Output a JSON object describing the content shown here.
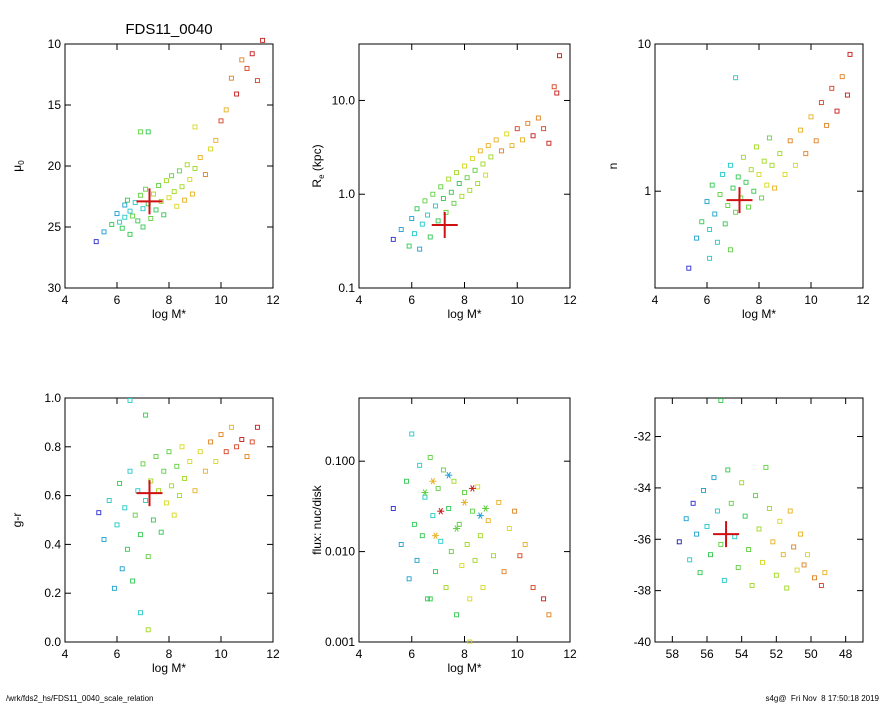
{
  "title": "FDS11_0040",
  "footer": {
    "left": "/wrk/fds2_hs/FDS11_0040_scale_relation",
    "right": "s4g@  Fri Nov  8 17:50:18 2019"
  },
  "colors": {
    "axes": "#000000",
    "marker_highlight": "#d01010",
    "palette": [
      "#1a1aa6",
      "#2a2ad0",
      "#1aa0d0",
      "#20c8c8",
      "#30c850",
      "#60d040",
      "#a0d820",
      "#d8d820",
      "#e8b020",
      "#e08020",
      "#d84020",
      "#c81818"
    ]
  },
  "chart_data": [
    {
      "type": "scatter",
      "xlabel": "log M*",
      "ylabel": "μ0",
      "xlim": [
        4,
        12
      ],
      "ylim": [
        30,
        10
      ],
      "xticks": [
        "4",
        "6",
        "8",
        "10",
        "12"
      ],
      "yticks": [
        "10",
        "15",
        "20",
        "25",
        "30"
      ],
      "y_reversed": true,
      "highlight": {
        "x": 7.25,
        "y": 22.9
      },
      "points": [
        [
          5.2,
          26.2
        ],
        [
          5.5,
          25.4
        ],
        [
          5.8,
          24.8
        ],
        [
          6.0,
          23.9
        ],
        [
          6.1,
          24.6
        ],
        [
          6.2,
          25.1
        ],
        [
          6.3,
          23.2
        ],
        [
          6.3,
          24.2
        ],
        [
          6.4,
          22.8
        ],
        [
          6.5,
          23.7
        ],
        [
          6.5,
          25.6
        ],
        [
          6.6,
          24.1
        ],
        [
          6.7,
          23.0
        ],
        [
          6.8,
          24.5
        ],
        [
          6.9,
          22.4
        ],
        [
          7.0,
          23.5
        ],
        [
          7.0,
          25.0
        ],
        [
          7.1,
          21.9
        ],
        [
          7.2,
          23.1
        ],
        [
          7.3,
          24.3
        ],
        [
          7.4,
          22.3
        ],
        [
          7.5,
          23.6
        ],
        [
          7.6,
          21.6
        ],
        [
          7.7,
          22.9
        ],
        [
          7.8,
          24.0
        ],
        [
          7.9,
          21.2
        ],
        [
          8.0,
          22.6
        ],
        [
          8.1,
          20.8
        ],
        [
          8.2,
          22.1
        ],
        [
          8.3,
          23.3
        ],
        [
          8.4,
          20.4
        ],
        [
          8.5,
          21.7
        ],
        [
          8.6,
          22.8
        ],
        [
          8.7,
          19.9
        ],
        [
          8.8,
          21.1
        ],
        [
          8.9,
          22.3
        ],
        [
          9.0,
          20.2
        ],
        [
          9.2,
          19.3
        ],
        [
          9.4,
          20.7
        ],
        [
          9.6,
          18.6
        ],
        [
          9.8,
          17.9
        ],
        [
          10.0,
          16.3
        ],
        [
          10.2,
          15.4
        ],
        [
          10.4,
          12.8
        ],
        [
          10.6,
          14.1
        ],
        [
          10.8,
          11.3
        ],
        [
          11.0,
          12.0
        ],
        [
          11.2,
          10.8
        ],
        [
          11.4,
          13.0
        ],
        [
          11.6,
          9.7
        ],
        [
          6.9,
          17.2
        ],
        [
          7.2,
          17.2
        ],
        [
          9.0,
          16.8
        ]
      ]
    },
    {
      "type": "scatter",
      "xlabel": "log M*",
      "ylabel": "Re (kpc)",
      "ylabel_main": "R",
      "ylabel_sub": "e",
      "ylabel_rest": " (kpc)",
      "xlim": [
        4,
        12
      ],
      "ylim": [
        0.1,
        40
      ],
      "y_log": true,
      "xticks": [
        "4",
        "6",
        "8",
        "10",
        "12"
      ],
      "yticks": [
        "0.1",
        "1.0",
        "10.0"
      ],
      "highlight": {
        "x": 7.25,
        "y": 0.47
      },
      "points": [
        [
          5.3,
          0.33
        ],
        [
          5.6,
          0.42
        ],
        [
          5.9,
          0.28
        ],
        [
          6.0,
          0.55
        ],
        [
          6.1,
          0.38
        ],
        [
          6.2,
          0.7
        ],
        [
          6.3,
          0.26
        ],
        [
          6.4,
          0.48
        ],
        [
          6.5,
          0.85
        ],
        [
          6.6,
          0.6
        ],
        [
          6.7,
          0.35
        ],
        [
          6.8,
          1.0
        ],
        [
          6.9,
          0.75
        ],
        [
          7.0,
          0.52
        ],
        [
          7.1,
          1.2
        ],
        [
          7.2,
          0.9
        ],
        [
          7.3,
          0.64
        ],
        [
          7.4,
          1.45
        ],
        [
          7.5,
          1.05
        ],
        [
          7.6,
          0.8
        ],
        [
          7.7,
          1.7
        ],
        [
          7.8,
          1.3
        ],
        [
          7.9,
          0.95
        ],
        [
          8.0,
          2.0
        ],
        [
          8.1,
          1.5
        ],
        [
          8.2,
          1.1
        ],
        [
          8.3,
          2.4
        ],
        [
          8.4,
          1.8
        ],
        [
          8.5,
          1.3
        ],
        [
          8.6,
          2.9
        ],
        [
          8.7,
          2.1
        ],
        [
          8.8,
          1.6
        ],
        [
          8.9,
          3.3
        ],
        [
          9.0,
          2.5
        ],
        [
          9.2,
          3.8
        ],
        [
          9.4,
          2.9
        ],
        [
          9.6,
          4.4
        ],
        [
          9.8,
          3.3
        ],
        [
          10.0,
          5.0
        ],
        [
          10.2,
          3.8
        ],
        [
          10.4,
          5.7
        ],
        [
          10.6,
          4.2
        ],
        [
          10.8,
          6.5
        ],
        [
          11.0,
          5.0
        ],
        [
          11.2,
          3.5
        ],
        [
          11.4,
          14.0
        ],
        [
          11.6,
          30.0
        ],
        [
          11.5,
          12.0
        ]
      ]
    },
    {
      "type": "scatter",
      "xlabel": "log M*",
      "ylabel": "n",
      "xlim": [
        4,
        12
      ],
      "ylim": [
        0.22,
        10
      ],
      "y_log": true,
      "xticks": [
        "4",
        "6",
        "8",
        "10",
        "12"
      ],
      "yticks": [
        "1",
        "10"
      ],
      "highlight": {
        "x": 7.25,
        "y": 0.87
      },
      "points": [
        [
          5.3,
          0.3
        ],
        [
          5.6,
          0.48
        ],
        [
          5.8,
          0.62
        ],
        [
          6.0,
          0.85
        ],
        [
          6.1,
          0.55
        ],
        [
          6.2,
          1.1
        ],
        [
          6.3,
          0.7
        ],
        [
          6.4,
          0.45
        ],
        [
          6.5,
          0.95
        ],
        [
          6.6,
          1.3
        ],
        [
          6.7,
          0.6
        ],
        [
          6.8,
          0.8
        ],
        [
          6.9,
          1.5
        ],
        [
          7.0,
          1.05
        ],
        [
          7.1,
          0.72
        ],
        [
          7.2,
          1.25
        ],
        [
          7.3,
          0.9
        ],
        [
          7.4,
          1.7
        ],
        [
          7.5,
          1.15
        ],
        [
          7.6,
          0.78
        ],
        [
          7.7,
          1.4
        ],
        [
          7.8,
          1.0
        ],
        [
          7.9,
          2.0
        ],
        [
          8.0,
          1.3
        ],
        [
          8.1,
          0.9
        ],
        [
          8.2,
          1.6
        ],
        [
          8.3,
          1.1
        ],
        [
          8.4,
          2.3
        ],
        [
          8.5,
          1.5
        ],
        [
          8.6,
          1.05
        ],
        [
          8.8,
          1.8
        ],
        [
          9.0,
          1.3
        ],
        [
          9.2,
          2.2
        ],
        [
          9.4,
          1.5
        ],
        [
          9.6,
          2.6
        ],
        [
          9.8,
          1.8
        ],
        [
          10.0,
          3.2
        ],
        [
          10.2,
          2.2
        ],
        [
          10.4,
          4.0
        ],
        [
          10.6,
          2.8
        ],
        [
          10.8,
          5.0
        ],
        [
          11.0,
          3.5
        ],
        [
          11.2,
          6.0
        ],
        [
          11.4,
          4.5
        ],
        [
          11.5,
          8.5
        ],
        [
          7.1,
          5.9
        ],
        [
          6.1,
          0.35
        ],
        [
          6.9,
          0.4
        ]
      ]
    },
    {
      "type": "scatter",
      "xlabel": "log M*",
      "ylabel": "g-r",
      "xlim": [
        4,
        12
      ],
      "ylim": [
        0.0,
        1.0
      ],
      "xticks": [
        "4",
        "6",
        "8",
        "10",
        "12"
      ],
      "yticks": [
        "0.0",
        "0.2",
        "0.4",
        "0.6",
        "0.8",
        "1.0"
      ],
      "highlight": {
        "x": 7.25,
        "y": 0.61
      },
      "points": [
        [
          5.3,
          0.53
        ],
        [
          5.5,
          0.42
        ],
        [
          5.7,
          0.58
        ],
        [
          5.9,
          0.22
        ],
        [
          6.0,
          0.48
        ],
        [
          6.1,
          0.65
        ],
        [
          6.2,
          0.3
        ],
        [
          6.3,
          0.55
        ],
        [
          6.4,
          0.38
        ],
        [
          6.5,
          0.7
        ],
        [
          6.6,
          0.25
        ],
        [
          6.7,
          0.52
        ],
        [
          6.8,
          0.62
        ],
        [
          6.9,
          0.44
        ],
        [
          7.0,
          0.73
        ],
        [
          7.1,
          0.58
        ],
        [
          7.2,
          0.35
        ],
        [
          7.3,
          0.66
        ],
        [
          7.4,
          0.5
        ],
        [
          7.5,
          0.76
        ],
        [
          7.6,
          0.62
        ],
        [
          7.7,
          0.45
        ],
        [
          7.8,
          0.7
        ],
        [
          7.9,
          0.57
        ],
        [
          8.0,
          0.78
        ],
        [
          8.1,
          0.64
        ],
        [
          8.2,
          0.52
        ],
        [
          8.3,
          0.72
        ],
        [
          8.4,
          0.6
        ],
        [
          8.5,
          0.8
        ],
        [
          8.6,
          0.67
        ],
        [
          8.8,
          0.74
        ],
        [
          9.0,
          0.62
        ],
        [
          9.2,
          0.78
        ],
        [
          9.4,
          0.7
        ],
        [
          9.6,
          0.82
        ],
        [
          9.8,
          0.74
        ],
        [
          10.0,
          0.85
        ],
        [
          10.2,
          0.78
        ],
        [
          10.4,
          0.88
        ],
        [
          10.6,
          0.8
        ],
        [
          10.8,
          0.83
        ],
        [
          11.0,
          0.76
        ],
        [
          11.2,
          0.82
        ],
        [
          11.4,
          0.88
        ],
        [
          6.5,
          0.99
        ],
        [
          7.1,
          0.93
        ],
        [
          7.2,
          0.05
        ],
        [
          6.9,
          0.12
        ]
      ]
    },
    {
      "type": "scatter",
      "xlabel": "log M*",
      "ylabel": "flux: nuc/disk",
      "xlim": [
        4,
        12
      ],
      "ylim": [
        0.001,
        0.5
      ],
      "y_log": true,
      "xticks": [
        "4",
        "6",
        "8",
        "10",
        "12"
      ],
      "yticks": [
        "0.001",
        "0.010",
        "0.100"
      ],
      "points": [
        [
          5.3,
          0.03
        ],
        [
          5.6,
          0.012
        ],
        [
          5.8,
          0.06
        ],
        [
          5.9,
          0.005
        ],
        [
          6.0,
          0.2
        ],
        [
          6.1,
          0.02
        ],
        [
          6.2,
          0.008
        ],
        [
          6.3,
          0.09
        ],
        [
          6.4,
          0.015
        ],
        [
          6.5,
          0.04
        ],
        [
          6.6,
          0.003
        ],
        [
          6.7,
          0.11
        ],
        [
          6.8,
          0.025
        ],
        [
          6.9,
          0.006
        ],
        [
          7.0,
          0.05
        ],
        [
          7.1,
          0.013
        ],
        [
          7.2,
          0.08
        ],
        [
          7.3,
          0.004
        ],
        [
          7.4,
          0.03
        ],
        [
          7.5,
          0.01
        ],
        [
          7.6,
          0.06
        ],
        [
          7.7,
          0.002
        ],
        [
          7.8,
          0.02
        ],
        [
          7.9,
          0.007
        ],
        [
          8.0,
          0.045
        ],
        [
          8.1,
          0.012
        ],
        [
          8.2,
          0.003
        ],
        [
          8.3,
          0.028
        ],
        [
          8.4,
          0.008
        ],
        [
          8.5,
          0.052
        ],
        [
          8.6,
          0.015
        ],
        [
          8.7,
          0.004
        ],
        [
          8.9,
          0.022
        ],
        [
          9.1,
          0.009
        ],
        [
          9.3,
          0.035
        ],
        [
          9.5,
          0.006
        ],
        [
          9.7,
          0.018
        ],
        [
          9.9,
          0.028
        ],
        [
          10.1,
          0.009
        ],
        [
          10.3,
          0.012
        ],
        [
          10.6,
          0.004
        ],
        [
          11.0,
          0.003
        ],
        [
          11.2,
          0.002
        ],
        [
          6.7,
          0.003
        ],
        [
          8.2,
          0.001
        ]
      ],
      "stars": [
        [
          6.5,
          0.045
        ],
        [
          6.8,
          0.06
        ],
        [
          7.1,
          0.028
        ],
        [
          7.4,
          0.07
        ],
        [
          7.7,
          0.018
        ],
        [
          8.0,
          0.035
        ],
        [
          8.3,
          0.05
        ],
        [
          8.6,
          0.025
        ],
        [
          8.8,
          0.03
        ],
        [
          6.9,
          0.015
        ]
      ]
    },
    {
      "type": "scatter",
      "xlim": [
        59,
        47
      ],
      "ylim": [
        -40,
        -30.5
      ],
      "x_reversed": true,
      "xticks": [
        "58",
        "56",
        "54",
        "52",
        "50",
        "48"
      ],
      "yticks": [
        "-32",
        "-34",
        "-36",
        "-38",
        "-40"
      ],
      "highlight": {
        "x": 54.9,
        "y": -35.8
      },
      "points": [
        [
          57.6,
          -36.1
        ],
        [
          57.2,
          -35.2
        ],
        [
          57.0,
          -36.8
        ],
        [
          56.8,
          -34.6
        ],
        [
          56.6,
          -35.8
        ],
        [
          56.4,
          -37.3
        ],
        [
          56.2,
          -34.1
        ],
        [
          56.0,
          -35.5
        ],
        [
          55.8,
          -36.6
        ],
        [
          55.6,
          -33.6
        ],
        [
          55.4,
          -34.9
        ],
        [
          55.2,
          -36.2
        ],
        [
          55.0,
          -37.6
        ],
        [
          54.8,
          -33.3
        ],
        [
          54.6,
          -34.6
        ],
        [
          54.4,
          -35.9
        ],
        [
          54.2,
          -37.1
        ],
        [
          54.0,
          -33.8
        ],
        [
          53.8,
          -35.1
        ],
        [
          53.6,
          -36.4
        ],
        [
          53.4,
          -37.8
        ],
        [
          53.2,
          -34.3
        ],
        [
          53.0,
          -35.6
        ],
        [
          52.8,
          -36.9
        ],
        [
          52.6,
          -33.2
        ],
        [
          52.4,
          -34.8
        ],
        [
          52.2,
          -36.1
        ],
        [
          52.0,
          -37.4
        ],
        [
          51.8,
          -35.3
        ],
        [
          51.6,
          -36.6
        ],
        [
          51.4,
          -37.9
        ],
        [
          51.2,
          -34.9
        ],
        [
          51.0,
          -36.3
        ],
        [
          50.8,
          -37.2
        ],
        [
          50.6,
          -35.8
        ],
        [
          50.4,
          -37.0
        ],
        [
          50.2,
          -36.6
        ],
        [
          49.8,
          -37.5
        ],
        [
          49.4,
          -37.8
        ],
        [
          49.2,
          -37.3
        ],
        [
          55.2,
          -30.6
        ]
      ]
    }
  ]
}
